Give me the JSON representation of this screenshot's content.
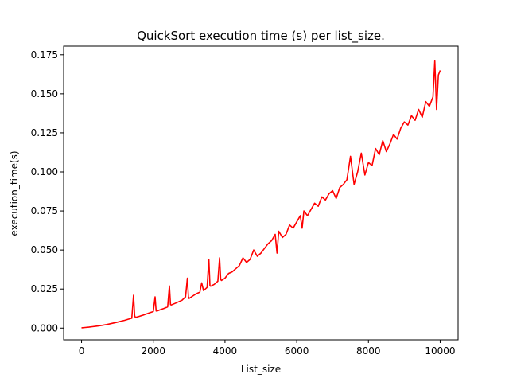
{
  "chart_data": {
    "type": "line",
    "title": "QuickSort execution time (s) per list_size.",
    "xlabel": "List_size",
    "ylabel": "execution_time(s)",
    "xlim": [
      -500,
      10500
    ],
    "ylim": [
      -0.0075,
      0.1805
    ],
    "xticks": [
      0,
      2000,
      4000,
      6000,
      8000,
      10000
    ],
    "xtick_labels": [
      "0",
      "2000",
      "4000",
      "6000",
      "8000",
      "10000"
    ],
    "yticks": [
      0.0,
      0.025,
      0.05,
      0.075,
      0.1,
      0.125,
      0.15,
      0.175
    ],
    "ytick_labels": [
      "0.000",
      "0.025",
      "0.050",
      "0.075",
      "0.100",
      "0.125",
      "0.150",
      "0.175"
    ],
    "grid": false,
    "series": [
      {
        "color": "#ff0000",
        "x": [
          0,
          100,
          200,
          300,
          400,
          500,
          600,
          700,
          800,
          900,
          1000,
          1100,
          1200,
          1300,
          1400,
          1450,
          1480,
          1500,
          1600,
          1700,
          1800,
          1900,
          2000,
          2050,
          2080,
          2100,
          2200,
          2300,
          2400,
          2450,
          2480,
          2500,
          2600,
          2700,
          2800,
          2900,
          2950,
          2980,
          3000,
          3100,
          3200,
          3300,
          3350,
          3400,
          3500,
          3550,
          3580,
          3600,
          3700,
          3800,
          3850,
          3880,
          3900,
          4000,
          4100,
          4200,
          4300,
          4400,
          4500,
          4600,
          4700,
          4800,
          4900,
          5000,
          5100,
          5200,
          5300,
          5400,
          5450,
          5500,
          5600,
          5700,
          5800,
          5900,
          6000,
          6100,
          6150,
          6200,
          6300,
          6400,
          6500,
          6600,
          6700,
          6800,
          6900,
          7000,
          7100,
          7200,
          7300,
          7400,
          7500,
          7600,
          7700,
          7800,
          7900,
          8000,
          8100,
          8200,
          8300,
          8400,
          8500,
          8600,
          8700,
          8800,
          8900,
          9000,
          9100,
          9200,
          9300,
          9400,
          9500,
          9600,
          9700,
          9800,
          9850,
          9900,
          9950,
          10000
        ],
        "y": [
          0.0002,
          0.0004,
          0.0006,
          0.0009,
          0.0012,
          0.0015,
          0.0019,
          0.0023,
          0.0028,
          0.0033,
          0.0038,
          0.0044,
          0.005,
          0.0057,
          0.0063,
          0.021,
          0.008,
          0.0068,
          0.0075,
          0.0082,
          0.009,
          0.0098,
          0.0106,
          0.02,
          0.011,
          0.0109,
          0.0118,
          0.0126,
          0.0136,
          0.027,
          0.015,
          0.0148,
          0.0158,
          0.0168,
          0.0178,
          0.02,
          0.032,
          0.02,
          0.019,
          0.0205,
          0.022,
          0.023,
          0.029,
          0.024,
          0.026,
          0.044,
          0.027,
          0.0268,
          0.028,
          0.03,
          0.045,
          0.031,
          0.0305,
          0.032,
          0.035,
          0.036,
          0.038,
          0.04,
          0.045,
          0.042,
          0.044,
          0.05,
          0.046,
          0.048,
          0.051,
          0.054,
          0.056,
          0.06,
          0.048,
          0.062,
          0.058,
          0.06,
          0.066,
          0.064,
          0.068,
          0.072,
          0.064,
          0.075,
          0.072,
          0.076,
          0.08,
          0.078,
          0.084,
          0.082,
          0.086,
          0.088,
          0.083,
          0.09,
          0.092,
          0.095,
          0.11,
          0.092,
          0.1,
          0.112,
          0.098,
          0.106,
          0.104,
          0.115,
          0.111,
          0.12,
          0.113,
          0.118,
          0.124,
          0.121,
          0.128,
          0.132,
          0.13,
          0.136,
          0.133,
          0.14,
          0.135,
          0.145,
          0.142,
          0.148,
          0.171,
          0.14,
          0.162,
          0.165
        ]
      }
    ]
  }
}
